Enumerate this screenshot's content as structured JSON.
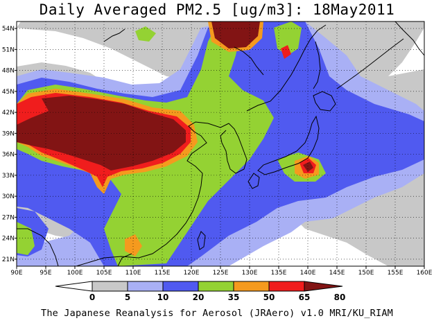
{
  "title": "Daily Averaged PM2.5 [ug/m3]: 18May2011",
  "footer": "The Japanese Reanalysis for Aerosol (JRAero) v1.0 MRI/KU_RIAM",
  "lon_labels": [
    "90E",
    "95E",
    "100E",
    "105E",
    "110E",
    "115E",
    "120E",
    "125E",
    "130E",
    "135E",
    "140E",
    "145E",
    "150E",
    "155E",
    "160E"
  ],
  "lat_labels": [
    "21N",
    "24N",
    "27N",
    "30N",
    "33N",
    "36N",
    "39N",
    "42N",
    "45N",
    "48N",
    "51N",
    "54N"
  ],
  "colorbar": {
    "levels": [
      "0",
      "5",
      "10",
      "20",
      "35",
      "50",
      "65",
      "80"
    ],
    "colors": [
      "#ffffff",
      "#c8c8c8",
      "#a9b0f5",
      "#505af0",
      "#94d233",
      "#f59a1e",
      "#f01d1d",
      "#821414"
    ]
  }
}
